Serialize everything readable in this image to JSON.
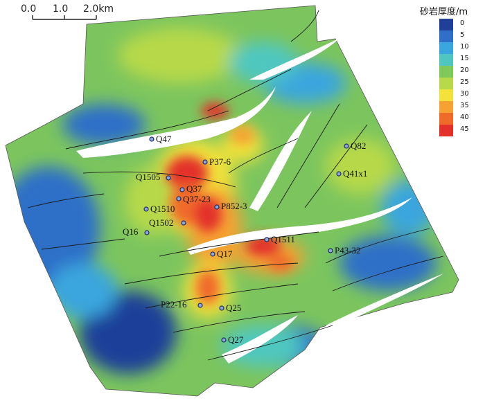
{
  "scale_bar": {
    "ticks": [
      "0.0",
      "1.0",
      "2.0km"
    ]
  },
  "legend": {
    "title": "砂岩厚度/m",
    "items": [
      {
        "label": "0",
        "color": "#1f3f99"
      },
      {
        "label": "5",
        "color": "#2f6fc8"
      },
      {
        "label": "10",
        "color": "#3aa6de"
      },
      {
        "label": "15",
        "color": "#4fc7c0"
      },
      {
        "label": "20",
        "color": "#7fc85a"
      },
      {
        "label": "25",
        "color": "#b7d94a"
      },
      {
        "label": "30",
        "color": "#f2e23a"
      },
      {
        "label": "35",
        "color": "#f6a233"
      },
      {
        "label": "40",
        "color": "#f06a2a"
      },
      {
        "label": "45",
        "color": "#e3302a"
      }
    ]
  },
  "wells": [
    {
      "name": "Q47"
    },
    {
      "name": "P37-6"
    },
    {
      "name": "Q1505"
    },
    {
      "name": "Q37"
    },
    {
      "name": "Q37-23"
    },
    {
      "name": "P852-3"
    },
    {
      "name": "Q1510"
    },
    {
      "name": "Q1502"
    },
    {
      "name": "Q16"
    },
    {
      "name": "Q82"
    },
    {
      "name": "Q41x1"
    },
    {
      "name": "Q1511"
    },
    {
      "name": "Q17"
    },
    {
      "name": "P43-32"
    },
    {
      "name": "P22-16"
    },
    {
      "name": "Q25"
    },
    {
      "name": "Q27"
    }
  ]
}
